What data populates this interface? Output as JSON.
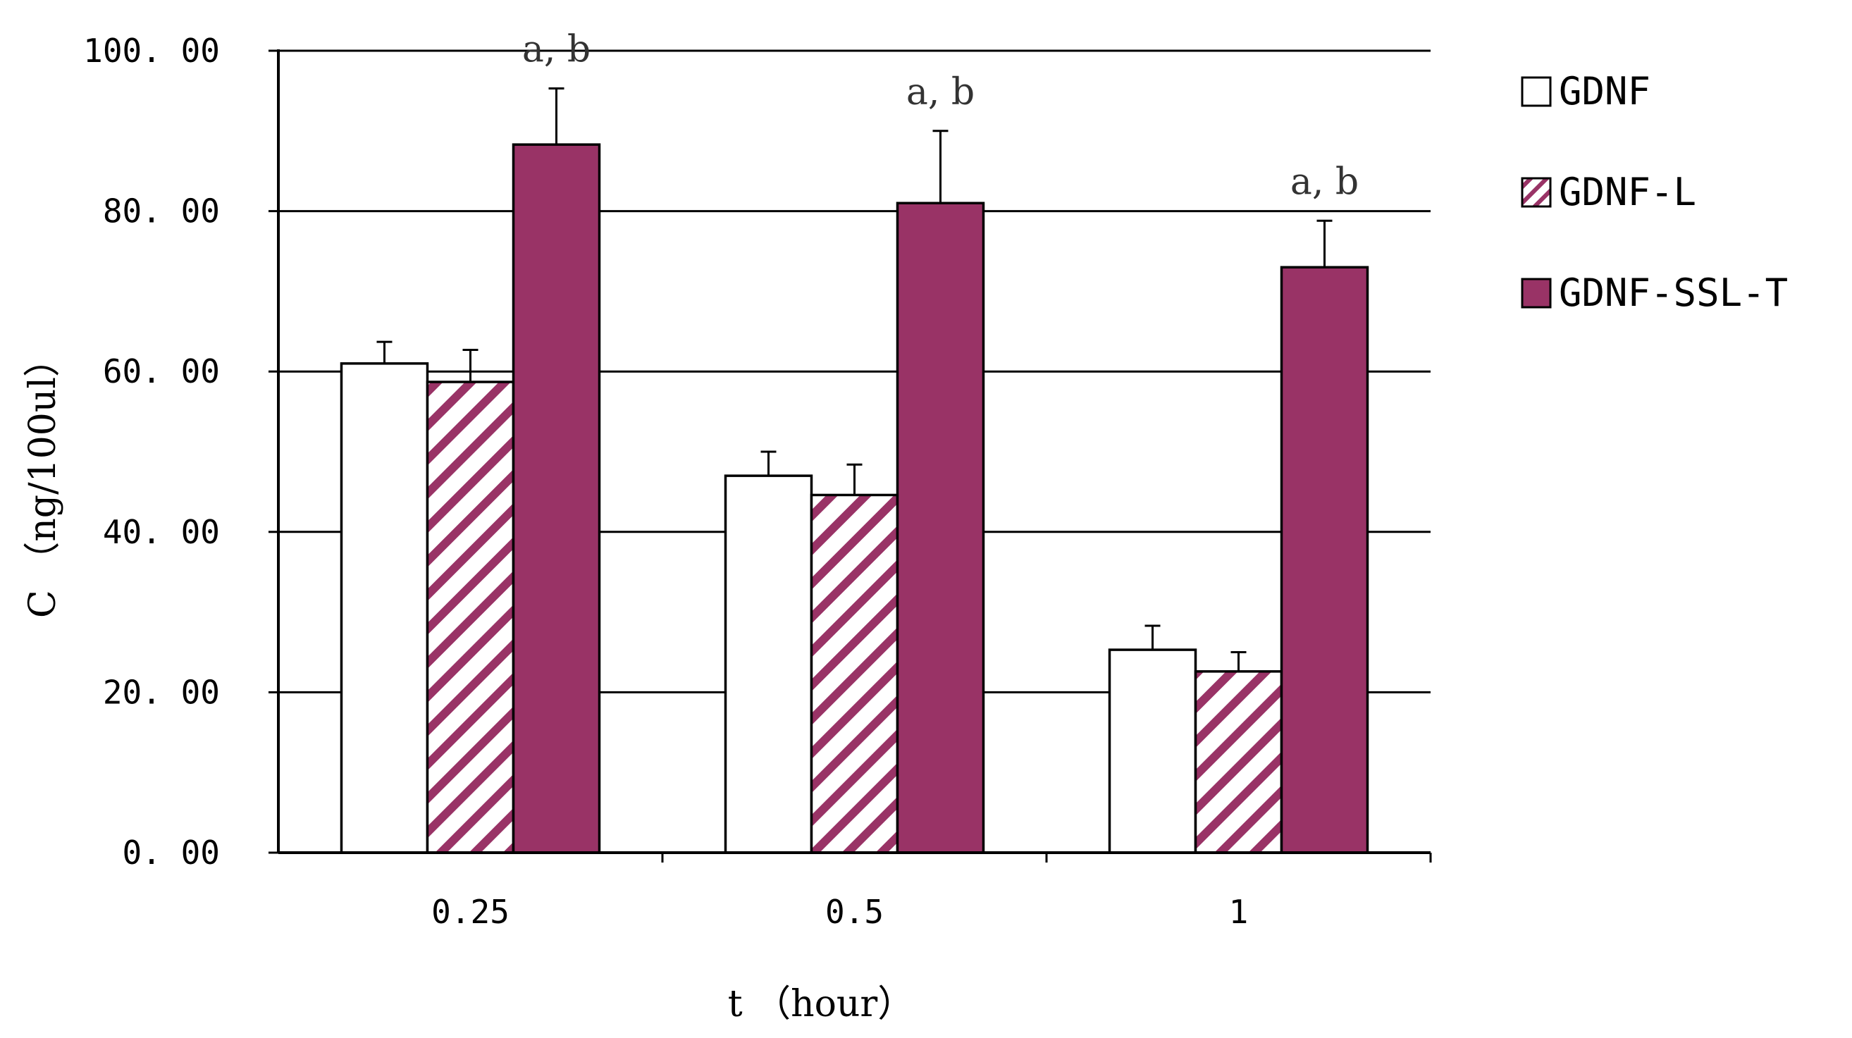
{
  "chart_data": {
    "type": "bar",
    "categories": [
      "0.25",
      "0.5",
      "1"
    ],
    "series": [
      {
        "name": "GDNF",
        "values": [
          61.0,
          47.0,
          25.3
        ],
        "errors": [
          2.7,
          3.0,
          3.0
        ],
        "fill": "#ffffff",
        "pattern": "none"
      },
      {
        "name": "GDNF-L",
        "values": [
          58.7,
          44.6,
          22.6
        ],
        "errors": [
          4.0,
          3.8,
          2.4
        ],
        "fill": "#ffffff",
        "pattern": "diagonal-hatch",
        "hatch_color": "#993366"
      },
      {
        "name": "GDNF-SSL-T",
        "values": [
          88.3,
          81.0,
          73.0
        ],
        "errors": [
          7.0,
          9.0,
          5.8
        ],
        "fill": "#993366",
        "pattern": "none"
      }
    ],
    "annotations": [
      {
        "category": "0.25",
        "text": "a, b"
      },
      {
        "category": "0.5",
        "text": "a, b"
      },
      {
        "category": "1",
        "text": "a, b"
      }
    ],
    "yticks": [
      "0. 00",
      "20. 00",
      "40. 00",
      "60. 00",
      "80. 00",
      "100. 00"
    ],
    "ylim": [
      0,
      100
    ],
    "ytick_step": 20,
    "xlabel": "t （hour）",
    "ylabel": "C （ng/100ul）",
    "grid": true,
    "legend_position": "right",
    "colors": {
      "accent": "#993366",
      "axis": "#000000",
      "grid": "#000000"
    }
  }
}
